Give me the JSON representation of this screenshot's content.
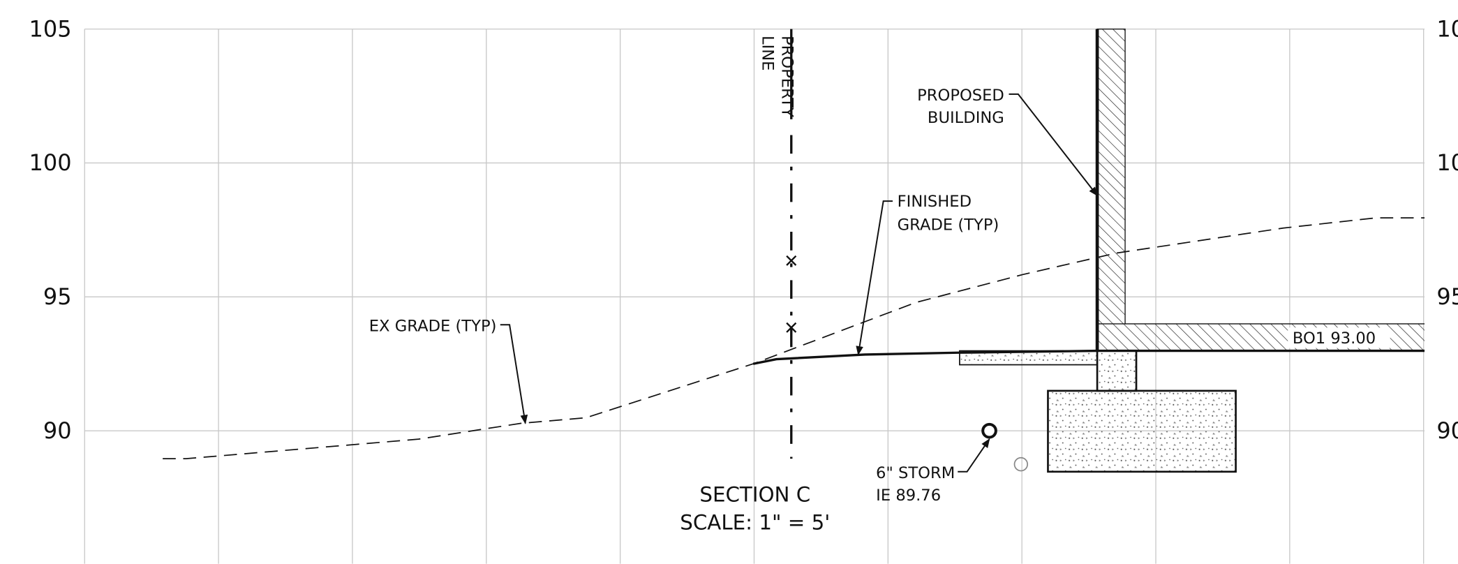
{
  "elevations": [
    105,
    100,
    95,
    90
  ],
  "labels": {
    "property_line": [
      "PROPERTY",
      "LINE"
    ],
    "proposed_building": [
      "PROPOSED",
      "BUILDING"
    ],
    "finished_grade": [
      "FINISHED",
      "GRADE (TYP)"
    ],
    "ex_grade": "EX GRADE (TYP)",
    "bottom_of_footing": "BO1 93.00",
    "storm": [
      "6\" STORM",
      "IE 89.76"
    ],
    "section": [
      "SECTION C",
      "SCALE: 1\" = 5'"
    ]
  }
}
